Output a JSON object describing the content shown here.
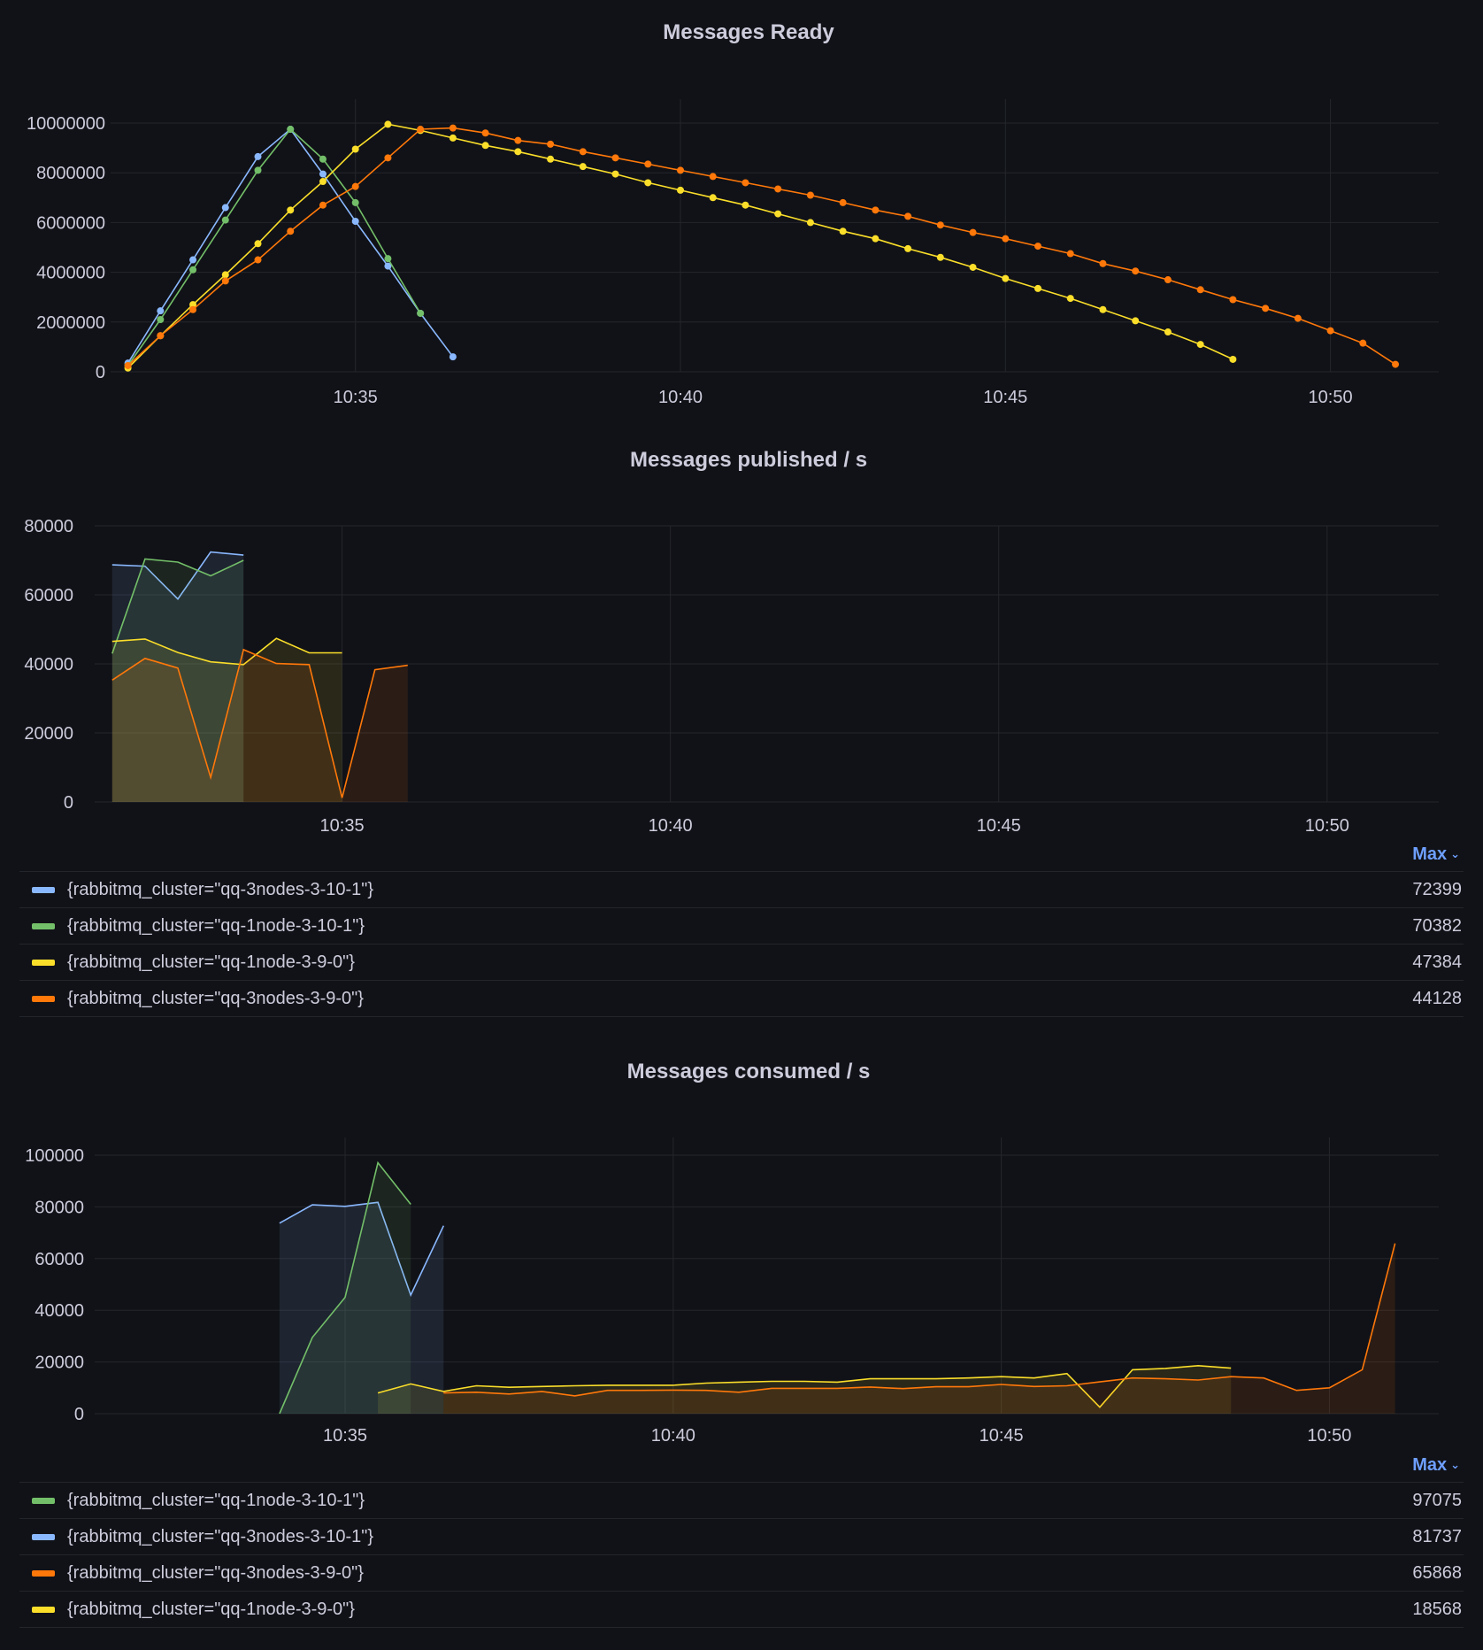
{
  "colors": {
    "blue": "#8ab8ff",
    "green": "#73bf69",
    "yellow": "#fade2a",
    "orange": "#ff780a",
    "background": "#111217",
    "grid": "#24262c",
    "text": "#ccccdc",
    "accent": "#6e9fff"
  },
  "chart_data": [
    {
      "type": "line",
      "title": "Messages Ready",
      "points_shown": true,
      "fill": false,
      "grid": true,
      "xlim": [
        "10:31:14",
        "10:51:40"
      ],
      "ylim": [
        0,
        10000000
      ],
      "xticks": [
        "10:35",
        "10:40",
        "10:45",
        "10:50"
      ],
      "yticks": [
        "0",
        "2000000",
        "4000000",
        "6000000",
        "8000000",
        "10000000"
      ],
      "series": [
        {
          "color": "blue",
          "x": [
            "10:31:30",
            "10:32:00",
            "10:32:30",
            "10:33:00",
            "10:33:30",
            "10:34:00",
            "10:34:30",
            "10:35:00",
            "10:35:30",
            "10:36:00",
            "10:36:30"
          ],
          "values": [
            350000,
            2450000,
            4500000,
            6600000,
            8650000,
            9750000,
            7950000,
            6050000,
            4250000,
            2350000,
            600000
          ]
        },
        {
          "color": "green",
          "x": [
            "10:31:30",
            "10:32:00",
            "10:32:30",
            "10:33:00",
            "10:33:30",
            "10:34:00",
            "10:34:30",
            "10:35:00",
            "10:35:30",
            "10:36:00"
          ],
          "values": [
            250000,
            2100000,
            4100000,
            6100000,
            8100000,
            9750000,
            8550000,
            6800000,
            4550000,
            2350000
          ]
        },
        {
          "color": "yellow",
          "x": [
            "10:31:30",
            "10:32:00",
            "10:32:30",
            "10:33:00",
            "10:33:30",
            "10:34:00",
            "10:34:30",
            "10:35:00",
            "10:35:30",
            "10:36:00",
            "10:36:30",
            "10:37:00",
            "10:37:30",
            "10:38:00",
            "10:38:30",
            "10:39:00",
            "10:39:30",
            "10:40:00",
            "10:40:30",
            "10:41:00",
            "10:41:30",
            "10:42:00",
            "10:42:30",
            "10:43:00",
            "10:43:30",
            "10:44:00",
            "10:44:30",
            "10:45:00",
            "10:45:30",
            "10:46:00",
            "10:46:30",
            "10:47:00",
            "10:47:30",
            "10:48:00",
            "10:48:30"
          ],
          "values": [
            150000,
            1450000,
            2700000,
            3900000,
            5150000,
            6500000,
            7650000,
            8950000,
            9950000,
            9700000,
            9400000,
            9100000,
            8850000,
            8550000,
            8250000,
            7950000,
            7600000,
            7300000,
            7000000,
            6700000,
            6350000,
            6000000,
            5650000,
            5350000,
            4950000,
            4600000,
            4200000,
            3750000,
            3350000,
            2950000,
            2500000,
            2050000,
            1600000,
            1100000,
            500000
          ]
        },
        {
          "color": "orange",
          "x": [
            "10:31:30",
            "10:32:00",
            "10:32:30",
            "10:33:00",
            "10:33:30",
            "10:34:00",
            "10:34:30",
            "10:35:00",
            "10:35:30",
            "10:36:00",
            "10:36:30",
            "10:37:00",
            "10:37:30",
            "10:38:00",
            "10:38:30",
            "10:39:00",
            "10:39:30",
            "10:40:00",
            "10:40:30",
            "10:41:00",
            "10:41:30",
            "10:42:00",
            "10:42:30",
            "10:43:00",
            "10:43:30",
            "10:44:00",
            "10:44:30",
            "10:45:00",
            "10:45:30",
            "10:46:00",
            "10:46:30",
            "10:47:00",
            "10:47:30",
            "10:48:00",
            "10:48:30",
            "10:49:00",
            "10:49:30",
            "10:50:00",
            "10:50:30",
            "10:51:00"
          ],
          "values": [
            250000,
            1450000,
            2500000,
            3650000,
            4500000,
            5650000,
            6700000,
            7450000,
            8600000,
            9750000,
            9800000,
            9600000,
            9300000,
            9150000,
            8850000,
            8600000,
            8350000,
            8100000,
            7850000,
            7600000,
            7350000,
            7100000,
            6800000,
            6500000,
            6250000,
            5900000,
            5600000,
            5350000,
            5050000,
            4750000,
            4350000,
            4050000,
            3700000,
            3300000,
            2900000,
            2550000,
            2150000,
            1650000,
            1150000,
            300000
          ]
        }
      ]
    },
    {
      "type": "area",
      "title": "Messages published / s",
      "points_shown": false,
      "fill": true,
      "grid": true,
      "xlim": [
        "10:31:14",
        "10:51:42"
      ],
      "ylim": [
        0,
        80000
      ],
      "xticks": [
        "10:35",
        "10:40",
        "10:45",
        "10:50"
      ],
      "yticks": [
        "0",
        "20000",
        "40000",
        "60000",
        "80000"
      ],
      "legend": {
        "header": "Max",
        "placement": "bottom",
        "items": [
          {
            "label": "{rabbitmq_cluster=\"qq-3nodes-3-10-1\"}",
            "color": "blue",
            "max": "72399"
          },
          {
            "label": "{rabbitmq_cluster=\"qq-1node-3-10-1\"}",
            "color": "green",
            "max": "70382"
          },
          {
            "label": "{rabbitmq_cluster=\"qq-1node-3-9-0\"}",
            "color": "yellow",
            "max": "47384"
          },
          {
            "label": "{rabbitmq_cluster=\"qq-3nodes-3-9-0\"}",
            "color": "orange",
            "max": "44128"
          }
        ]
      },
      "series": [
        {
          "name": "{rabbitmq_cluster=\"qq-3nodes-3-10-1\"}",
          "color": "blue",
          "x": [
            "10:31:30",
            "10:32:00",
            "10:32:30",
            "10:33:00",
            "10:33:30"
          ],
          "values": [
            68700,
            68300,
            58800,
            72399,
            71500
          ]
        },
        {
          "name": "{rabbitmq_cluster=\"qq-1node-3-10-1\"}",
          "color": "green",
          "x": [
            "10:31:30",
            "10:32:00",
            "10:32:30",
            "10:33:00",
            "10:33:30"
          ],
          "values": [
            43000,
            70382,
            69500,
            65500,
            70000
          ]
        },
        {
          "name": "{rabbitmq_cluster=\"qq-1node-3-9-0\"}",
          "color": "yellow",
          "x": [
            "10:31:30",
            "10:32:00",
            "10:32:30",
            "10:33:00",
            "10:33:30",
            "10:34:00",
            "10:34:30",
            "10:35:00"
          ],
          "values": [
            46500,
            47200,
            43300,
            40600,
            39800,
            47384,
            43200,
            43200
          ]
        },
        {
          "name": "{rabbitmq_cluster=\"qq-3nodes-3-9-0\"}",
          "color": "orange",
          "x": [
            "10:31:30",
            "10:32:00",
            "10:32:30",
            "10:33:00",
            "10:33:30",
            "10:34:00",
            "10:34:30",
            "10:35:00",
            "10:35:30",
            "10:36:00"
          ],
          "values": [
            35300,
            41600,
            38800,
            7100,
            44128,
            40100,
            39800,
            1200,
            38300,
            39600
          ]
        }
      ]
    },
    {
      "type": "area",
      "title": "Messages consumed / s",
      "points_shown": false,
      "fill": true,
      "grid": true,
      "xlim": [
        "10:31:11",
        "10:51:40"
      ],
      "ylim": [
        0,
        100000
      ],
      "xticks": [
        "10:35",
        "10:40",
        "10:45",
        "10:50"
      ],
      "yticks": [
        "0",
        "20000",
        "40000",
        "60000",
        "80000",
        "100000"
      ],
      "legend": {
        "header": "Max",
        "placement": "bottom",
        "items": [
          {
            "label": "{rabbitmq_cluster=\"qq-1node-3-10-1\"}",
            "color": "green",
            "max": "97075"
          },
          {
            "label": "{rabbitmq_cluster=\"qq-3nodes-3-10-1\"}",
            "color": "blue",
            "max": "81737"
          },
          {
            "label": "{rabbitmq_cluster=\"qq-3nodes-3-9-0\"}",
            "color": "orange",
            "max": "65868"
          },
          {
            "label": "{rabbitmq_cluster=\"qq-1node-3-9-0\"}",
            "color": "yellow",
            "max": "18568"
          }
        ]
      },
      "series": [
        {
          "name": "{rabbitmq_cluster=\"qq-3nodes-3-10-1\"}",
          "color": "blue",
          "x": [
            "10:34:00",
            "10:34:30",
            "10:35:00",
            "10:35:30",
            "10:36:00",
            "10:36:30"
          ],
          "values": [
            73700,
            80800,
            80200,
            81737,
            45900,
            72700
          ]
        },
        {
          "name": "{rabbitmq_cluster=\"qq-1node-3-10-1\"}",
          "color": "green",
          "x": [
            "10:34:00",
            "10:34:30",
            "10:35:00",
            "10:35:30",
            "10:36:00"
          ],
          "values": [
            0,
            29500,
            45000,
            97075,
            81000
          ]
        },
        {
          "name": "{rabbitmq_cluster=\"qq-1node-3-9-0\"}",
          "color": "yellow",
          "x": [
            "10:35:30",
            "10:36:00",
            "10:36:30",
            "10:37:00",
            "10:37:30",
            "10:38:00",
            "10:38:30",
            "10:39:00",
            "10:39:30",
            "10:40:00",
            "10:40:30",
            "10:41:00",
            "10:41:30",
            "10:42:00",
            "10:42:30",
            "10:43:00",
            "10:43:30",
            "10:44:00",
            "10:44:30",
            "10:45:00",
            "10:45:30",
            "10:46:00",
            "10:46:30",
            "10:47:00",
            "10:47:30",
            "10:48:00",
            "10:48:30"
          ],
          "values": [
            8000,
            11500,
            8600,
            10800,
            10200,
            10500,
            10800,
            11000,
            11000,
            11000,
            11800,
            12200,
            12500,
            12500,
            12200,
            13500,
            13500,
            13500,
            13800,
            14300,
            13800,
            15500,
            2500,
            17000,
            17500,
            18568,
            17600
          ]
        },
        {
          "name": "{rabbitmq_cluster=\"qq-3nodes-3-9-0\"}",
          "color": "orange",
          "x": [
            "10:36:30",
            "10:37:00",
            "10:37:30",
            "10:38:00",
            "10:38:30",
            "10:39:00",
            "10:39:30",
            "10:40:00",
            "10:40:30",
            "10:41:00",
            "10:41:30",
            "10:42:00",
            "10:42:30",
            "10:43:00",
            "10:43:30",
            "10:44:00",
            "10:44:30",
            "10:45:00",
            "10:45:30",
            "10:46:00",
            "10:46:30",
            "10:47:00",
            "10:47:30",
            "10:48:00",
            "10:48:30",
            "10:49:00",
            "10:49:30",
            "10:50:00",
            "10:50:30",
            "10:51:00"
          ],
          "values": [
            8000,
            8300,
            7600,
            8600,
            6900,
            9000,
            9000,
            9100,
            9000,
            8300,
            9800,
            9800,
            9800,
            10300,
            9700,
            10400,
            10400,
            11300,
            10500,
            10800,
            12300,
            13800,
            13500,
            13000,
            14300,
            13800,
            9000,
            10000,
            17000,
            65868
          ]
        }
      ]
    }
  ]
}
